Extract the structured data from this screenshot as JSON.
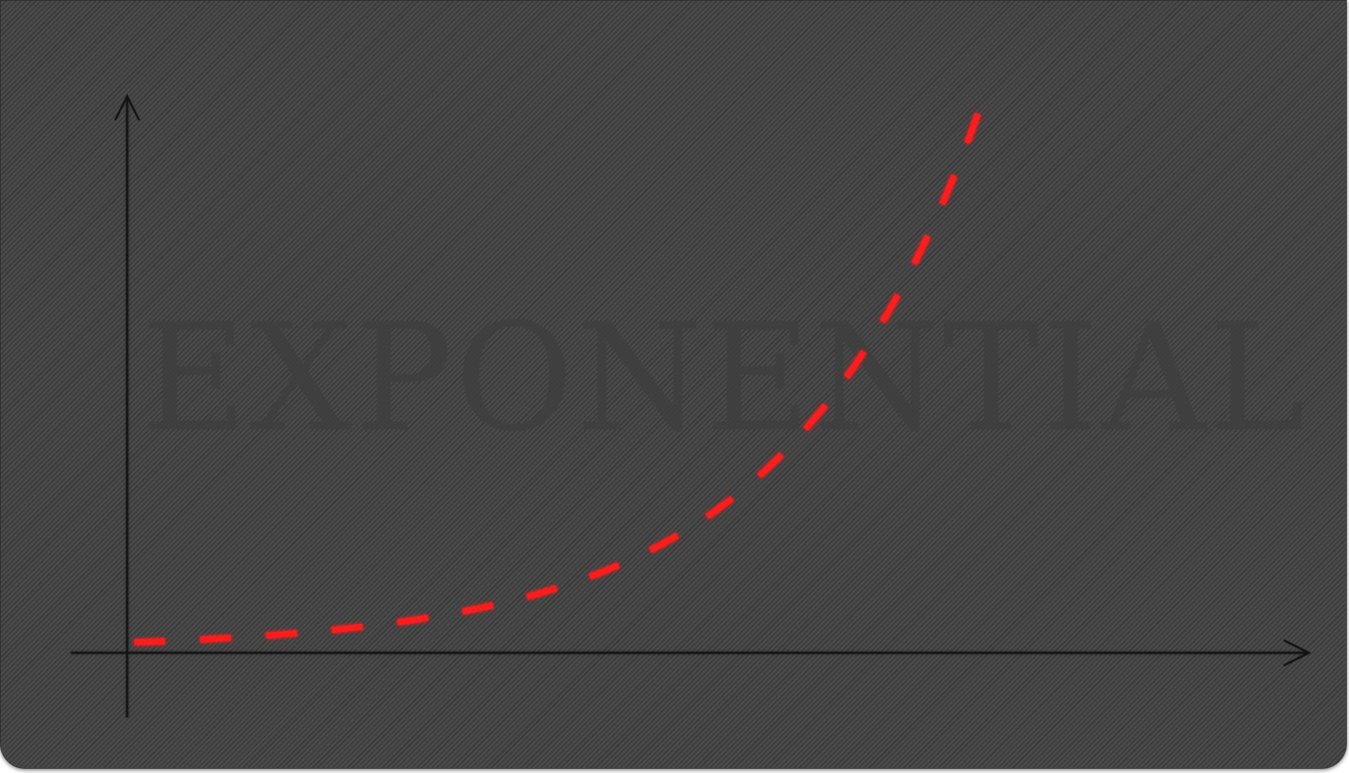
{
  "diagram": {
    "watermark_text": "EXPONENTIAL",
    "curve_type": "exponential",
    "curve_style": "dashed",
    "colors": {
      "background": "#4a4a4a",
      "axes": "#111111",
      "curve": "#ff1a1a",
      "watermark": "#3f3f3f"
    }
  }
}
